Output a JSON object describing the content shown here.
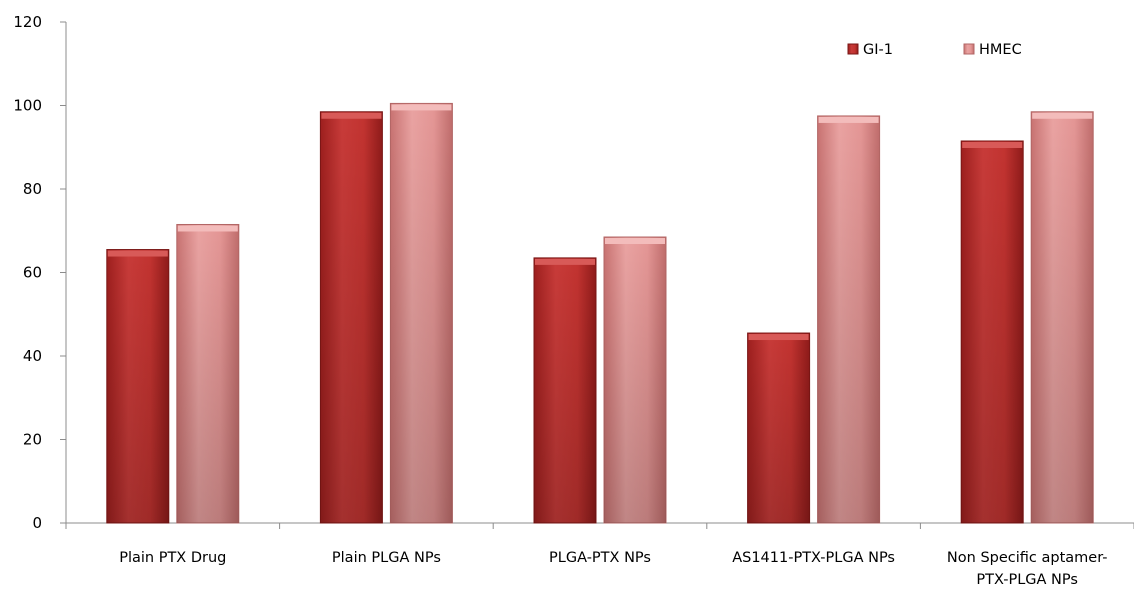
{
  "chart_data": {
    "type": "bar",
    "categories": [
      [
        "Plain PTX  Drug"
      ],
      [
        "Plain PLGA NPs"
      ],
      [
        "PLGA-PTX NPs"
      ],
      [
        "AS1411-PTX-PLGA NPs"
      ],
      [
        "Non Specific aptamer-",
        "PTX-PLGA NPs"
      ]
    ],
    "series": [
      {
        "name": "GI-1",
        "color": "#c0302f",
        "values": [
          65.5,
          98.5,
          63.5,
          45.5,
          91.5
        ]
      },
      {
        "name": "HMEC",
        "color": "#e28d8c",
        "values": [
          71.5,
          100.5,
          68.5,
          97.5,
          98.5
        ]
      }
    ],
    "ylim": [
      0,
      120
    ],
    "yticks": [
      "0",
      "20",
      "40",
      "60",
      "80",
      "100",
      "120"
    ],
    "legend_position": "top-right",
    "grid": false
  }
}
